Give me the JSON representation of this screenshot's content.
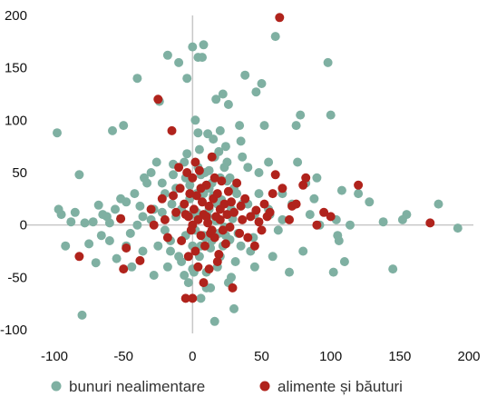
{
  "chart_data": {
    "type": "scatter",
    "xlim": [
      -100,
      200
    ],
    "ylim": [
      -100,
      200
    ],
    "x_ticks": [
      -100,
      -50,
      0,
      50,
      100,
      150,
      200
    ],
    "y_ticks": [
      -100,
      -50,
      0,
      50,
      100,
      150,
      200
    ],
    "grid": false,
    "legend_position": "bottom",
    "series": [
      {
        "name": "bunuri nealimentare",
        "color": "#7fb0a2",
        "points": [
          [
            -98,
            88
          ],
          [
            -97,
            15
          ],
          [
            -95,
            10
          ],
          [
            -92,
            -20
          ],
          [
            -88,
            3
          ],
          [
            -85,
            12
          ],
          [
            -82,
            48
          ],
          [
            -80,
            -86
          ],
          [
            -78,
            2
          ],
          [
            -75,
            -18
          ],
          [
            -72,
            3
          ],
          [
            -70,
            -36
          ],
          [
            -68,
            19
          ],
          [
            -66,
            -10
          ],
          [
            -62,
            8
          ],
          [
            -60,
            2
          ],
          [
            -58,
            90
          ],
          [
            -56,
            15
          ],
          [
            -55,
            -32
          ],
          [
            -52,
            6
          ],
          [
            -50,
            95
          ],
          [
            -48,
            22
          ],
          [
            -45,
            -8
          ],
          [
            -42,
            30
          ],
          [
            -40,
            140
          ],
          [
            -38,
            18
          ],
          [
            -36,
            -25
          ],
          [
            -33,
            40
          ],
          [
            -30,
            5
          ],
          [
            -28,
            -48
          ],
          [
            -26,
            60
          ],
          [
            -24,
            118
          ],
          [
            -22,
            12
          ],
          [
            -20,
            30
          ],
          [
            -18,
            162
          ],
          [
            -16,
            -15
          ],
          [
            -14,
            48
          ],
          [
            -12,
            8
          ],
          [
            -10,
            155
          ],
          [
            -8,
            -35
          ],
          [
            -6,
            60
          ],
          [
            -4,
            140
          ],
          [
            -2,
            25
          ],
          [
            0,
            170
          ],
          [
            2,
            100
          ],
          [
            3,
            30
          ],
          [
            4,
            160
          ],
          [
            5,
            72
          ],
          [
            6,
            -20
          ],
          [
            7,
            160
          ],
          [
            8,
            172
          ],
          [
            9,
            50
          ],
          [
            10,
            -45
          ],
          [
            11,
            87
          ],
          [
            12,
            15
          ],
          [
            13,
            -60
          ],
          [
            14,
            40
          ],
          [
            15,
            82
          ],
          [
            16,
            -92
          ],
          [
            17,
            120
          ],
          [
            18,
            20
          ],
          [
            19,
            70
          ],
          [
            20,
            -30
          ],
          [
            22,
            125
          ],
          [
            23,
            55
          ],
          [
            24,
            -10
          ],
          [
            25,
            10
          ],
          [
            26,
            115
          ],
          [
            27,
            45
          ],
          [
            28,
            -50
          ],
          [
            30,
            -80
          ],
          [
            32,
            30
          ],
          [
            34,
            95
          ],
          [
            35,
            80
          ],
          [
            36,
            65
          ],
          [
            38,
            143
          ],
          [
            40,
            20
          ],
          [
            42,
            -25
          ],
          [
            45,
            10
          ],
          [
            46,
            127
          ],
          [
            48,
            50
          ],
          [
            50,
            135
          ],
          [
            52,
            95
          ],
          [
            55,
            60
          ],
          [
            56,
            10
          ],
          [
            58,
            -30
          ],
          [
            60,
            180
          ],
          [
            62,
            -5
          ],
          [
            65,
            5
          ],
          [
            70,
            -45
          ],
          [
            72,
            20
          ],
          [
            75,
            95
          ],
          [
            76,
            60
          ],
          [
            78,
            105
          ],
          [
            80,
            -25
          ],
          [
            82,
            40
          ],
          [
            85,
            10
          ],
          [
            88,
            25
          ],
          [
            90,
            45
          ],
          [
            92,
            0
          ],
          [
            98,
            155
          ],
          [
            100,
            105
          ],
          [
            102,
            -45
          ],
          [
            104,
            5
          ],
          [
            105,
            -10
          ],
          [
            106,
            -15
          ],
          [
            108,
            33
          ],
          [
            110,
            -35
          ],
          [
            114,
            0
          ],
          [
            120,
            30
          ],
          [
            128,
            22
          ],
          [
            138,
            3
          ],
          [
            145,
            -42
          ],
          [
            152,
            5
          ],
          [
            155,
            10
          ],
          [
            178,
            20
          ],
          [
            192,
            -3
          ],
          [
            -40,
            0
          ],
          [
            -30,
            50
          ],
          [
            -20,
            -5
          ],
          [
            -15,
            20
          ],
          [
            -10,
            -30
          ],
          [
            -5,
            45
          ],
          [
            -3,
            -55
          ],
          [
            -1,
            10
          ],
          [
            1,
            -45
          ],
          [
            2,
            -5
          ],
          [
            4,
            55
          ],
          [
            6,
            -70
          ],
          [
            8,
            30
          ],
          [
            10,
            -60
          ],
          [
            12,
            35
          ],
          [
            14,
            -15
          ],
          [
            16,
            65
          ],
          [
            18,
            -40
          ],
          [
            20,
            45
          ],
          [
            22,
            -20
          ],
          [
            24,
            75
          ],
          [
            26,
            -55
          ],
          [
            28,
            15
          ],
          [
            30,
            35
          ],
          [
            33,
            -8
          ],
          [
            36,
            20
          ],
          [
            40,
            55
          ],
          [
            44,
            -12
          ],
          [
            48,
            30
          ],
          [
            -25,
            -20
          ],
          [
            -18,
            -40
          ],
          [
            -12,
            35
          ],
          [
            -8,
            15
          ],
          [
            -5,
            -10
          ],
          [
            -2,
            38
          ],
          [
            0,
            -20
          ],
          [
            3,
            12
          ],
          [
            5,
            -30
          ],
          [
            7,
            22
          ],
          [
            9,
            -12
          ],
          [
            11,
            8
          ],
          [
            13,
            -22
          ],
          [
            15,
            28
          ],
          [
            17,
            4
          ],
          [
            19,
            -8
          ],
          [
            21,
            24
          ],
          [
            23,
            -2
          ],
          [
            25,
            42
          ],
          [
            27,
            -14
          ],
          [
            29,
            6
          ],
          [
            31,
            -35
          ],
          [
            -60,
            -15
          ],
          [
            -52,
            25
          ],
          [
            -44,
            -40
          ],
          [
            -36,
            8
          ],
          [
            -28,
            15
          ],
          [
            -22,
            40
          ],
          [
            -16,
            -25
          ],
          [
            -14,
            58
          ],
          [
            -6,
            -48
          ],
          [
            -4,
            68
          ],
          [
            0,
            -42
          ],
          [
            4,
            88
          ],
          [
            6,
            48
          ],
          [
            8,
            -10
          ],
          [
            12,
            52
          ],
          [
            20,
            90
          ],
          [
            25,
            60
          ],
          [
            35,
            -20
          ],
          [
            45,
            -40
          ],
          [
            55,
            15
          ],
          [
            65,
            30
          ],
          [
            -65,
            10
          ],
          [
            -48,
            -20
          ],
          [
            -35,
            45
          ]
        ]
      },
      {
        "name": "alimente și băuturi",
        "color": "#b0231c",
        "points": [
          [
            -82,
            -30
          ],
          [
            -52,
            6
          ],
          [
            -50,
            -42
          ],
          [
            -48,
            -22
          ],
          [
            -38,
            -34
          ],
          [
            -30,
            15
          ],
          [
            -28,
            0
          ],
          [
            -25,
            120
          ],
          [
            -22,
            25
          ],
          [
            -20,
            5
          ],
          [
            -18,
            -12
          ],
          [
            -15,
            90
          ],
          [
            -14,
            28
          ],
          [
            -12,
            12
          ],
          [
            -10,
            55
          ],
          [
            -9,
            35
          ],
          [
            -8,
            -15
          ],
          [
            -6,
            20
          ],
          [
            -5,
            -70
          ],
          [
            -4,
            50
          ],
          [
            -3,
            8
          ],
          [
            -2,
            30
          ],
          [
            -1,
            -5
          ],
          [
            0,
            45
          ],
          [
            1,
            15
          ],
          [
            2,
            -25
          ],
          [
            3,
            28
          ],
          [
            4,
            5
          ],
          [
            5,
            52
          ],
          [
            6,
            -10
          ],
          [
            7,
            22
          ],
          [
            8,
            10
          ],
          [
            9,
            -20
          ],
          [
            10,
            38
          ],
          [
            11,
            2
          ],
          [
            12,
            18
          ],
          [
            13,
            -8
          ],
          [
            14,
            65
          ],
          [
            15,
            25
          ],
          [
            16,
            -12
          ],
          [
            17,
            8
          ],
          [
            18,
            30
          ],
          [
            19,
            -28
          ],
          [
            20,
            15
          ],
          [
            21,
            42
          ],
          [
            22,
            -5
          ],
          [
            23,
            20
          ],
          [
            24,
            -18
          ],
          [
            25,
            10
          ],
          [
            26,
            32
          ],
          [
            27,
            -2
          ],
          [
            28,
            22
          ],
          [
            29,
            -60
          ],
          [
            30,
            12
          ],
          [
            32,
            40
          ],
          [
            34,
            -8
          ],
          [
            35,
            18
          ],
          [
            36,
            5
          ],
          [
            38,
            25
          ],
          [
            40,
            -12
          ],
          [
            42,
            8
          ],
          [
            45,
            -20
          ],
          [
            46,
            14
          ],
          [
            48,
            3
          ],
          [
            50,
            -5
          ],
          [
            52,
            20
          ],
          [
            54,
            8
          ],
          [
            56,
            12
          ],
          [
            58,
            30
          ],
          [
            60,
            48
          ],
          [
            63,
            198
          ],
          [
            65,
            35
          ],
          [
            70,
            5
          ],
          [
            72,
            18
          ],
          [
            75,
            20
          ],
          [
            80,
            38
          ],
          [
            82,
            45
          ],
          [
            90,
            0
          ],
          [
            95,
            12
          ],
          [
            100,
            8
          ],
          [
            120,
            38
          ],
          [
            172,
            2
          ],
          [
            -5,
            10
          ],
          [
            -3,
            -30
          ],
          [
            0,
            0
          ],
          [
            2,
            60
          ],
          [
            4,
            -40
          ],
          [
            6,
            35
          ],
          [
            8,
            -55
          ],
          [
            10,
            8
          ],
          [
            12,
            -42
          ],
          [
            14,
            -5
          ],
          [
            16,
            45
          ],
          [
            18,
            -35
          ],
          [
            20,
            5
          ],
          [
            0,
            -70
          ]
        ]
      }
    ]
  }
}
